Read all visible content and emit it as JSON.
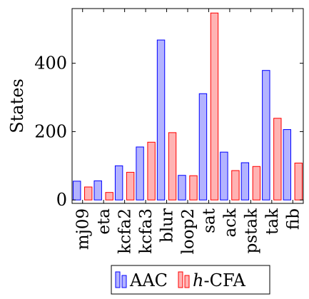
{
  "chart_data": {
    "type": "bar",
    "categories": [
      "mj09",
      "eta",
      "kcfa2",
      "kcfa3",
      "blur",
      "loop2",
      "sat",
      "ack",
      "pstak",
      "tak",
      "fib"
    ],
    "series": [
      {
        "name": "AAC",
        "values": [
          55,
          56,
          100,
          155,
          468,
          72,
          311,
          140,
          109,
          379,
          206
        ],
        "color": "#0000ff",
        "fill": "#b3b3ff"
      },
      {
        "name": "h-CFA",
        "values": [
          38,
          22,
          81,
          169,
          197,
          71,
          547,
          86,
          98,
          239,
          108
        ],
        "color": "#ff0000",
        "fill": "#ffb3b3"
      }
    ],
    "ylabel": "States",
    "yticks": [
      0,
      200,
      400
    ],
    "ylim": [
      -10,
      560
    ],
    "grid": false,
    "legend": {
      "position": "bottom",
      "entries": [
        "AAC",
        "h-CFA"
      ]
    }
  }
}
